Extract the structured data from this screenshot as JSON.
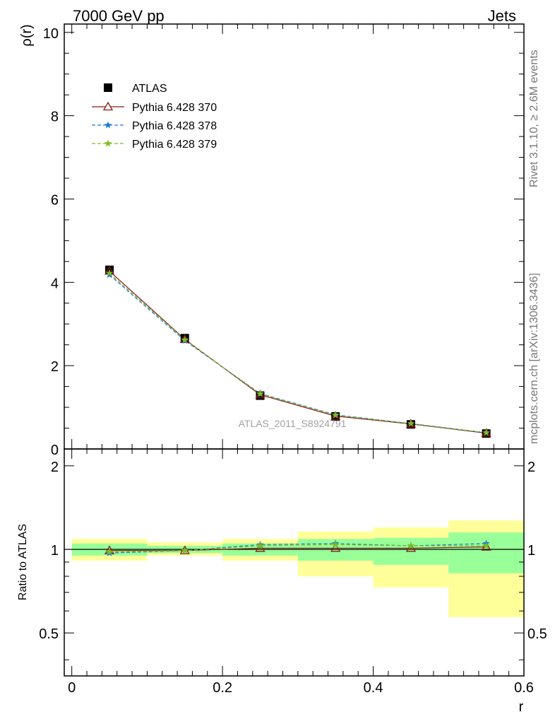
{
  "header": {
    "left": "7000 GeV pp",
    "right": "Jets"
  },
  "side": {
    "rivet": "Rivet 3.1.10, ≥ 2.6M events",
    "mcplots": "mcplots.cern.ch [arXiv:1306.3436]"
  },
  "watermark": "ATLAS_2011_S8924791",
  "colors": {
    "atlas": "#000000",
    "p370": "#8b1a1a",
    "p378": "#1f77d4",
    "p379": "#7dbd1e",
    "band_outer": "#ffff99",
    "band_inner": "#99ff99"
  },
  "chart_data": [
    {
      "type": "line",
      "ylabel": "ρ(r)",
      "xlim": [
        -0.01,
        0.6
      ],
      "ylim": [
        0,
        10.2
      ],
      "yticks": [
        0,
        2,
        4,
        6,
        8,
        10
      ],
      "ytick_labels": [
        "0",
        "2",
        "4",
        "6",
        "8",
        "10"
      ],
      "x": [
        0.05,
        0.15,
        0.25,
        0.35,
        0.45,
        0.55
      ],
      "legend": {
        "position": "top-left",
        "entries": [
          "ATLAS",
          "Pythia 6.428 370",
          "Pythia 6.428 378",
          "Pythia 6.428 379"
        ]
      },
      "series": [
        {
          "name": "ATLAS",
          "marker": "square",
          "values": [
            4.3,
            2.66,
            1.28,
            0.78,
            0.59,
            0.37
          ]
        },
        {
          "name": "Pythia 6.428 370",
          "marker": "triangle",
          "line": "solid",
          "values": [
            4.27,
            2.63,
            1.3,
            0.79,
            0.6,
            0.38
          ]
        },
        {
          "name": "Pythia 6.428 378",
          "marker": "star",
          "line": "dashed",
          "values": [
            4.18,
            2.6,
            1.33,
            0.82,
            0.61,
            0.39
          ]
        },
        {
          "name": "Pythia 6.428 379",
          "marker": "star",
          "line": "dashed",
          "values": [
            4.22,
            2.62,
            1.32,
            0.81,
            0.61,
            0.39
          ]
        }
      ]
    },
    {
      "type": "line",
      "ylabel": "Ratio to ATLAS",
      "xlabel": "r",
      "xlim": [
        -0.01,
        0.6
      ],
      "ylim": [
        0.35,
        2.3
      ],
      "xticks": [
        0,
        0.2,
        0.4,
        0.6
      ],
      "xtick_labels": [
        "0",
        "0.2",
        "0.4",
        "0.6"
      ],
      "yticks": [
        0.5,
        1,
        2
      ],
      "ytick_labels": [
        "0.5",
        "1",
        "2"
      ],
      "bins": [
        [
          0,
          0.1
        ],
        [
          0.1,
          0.2
        ],
        [
          0.2,
          0.3
        ],
        [
          0.3,
          0.4
        ],
        [
          0.4,
          0.5
        ],
        [
          0.5,
          0.6
        ]
      ],
      "band_outer": [
        [
          0.91,
          1.09
        ],
        [
          0.95,
          1.06
        ],
        [
          0.91,
          1.09
        ],
        [
          0.8,
          1.16
        ],
        [
          0.73,
          1.2
        ],
        [
          0.57,
          1.27
        ]
      ],
      "band_inner": [
        [
          0.95,
          1.05
        ],
        [
          0.97,
          1.03
        ],
        [
          0.95,
          1.05
        ],
        [
          0.91,
          1.09
        ],
        [
          0.88,
          1.1
        ],
        [
          0.82,
          1.15
        ]
      ],
      "x": [
        0.05,
        0.15,
        0.25,
        0.35,
        0.45,
        0.55
      ],
      "series": [
        {
          "name": "Pythia 6.428 370",
          "values": [
            0.99,
            0.99,
            1.01,
            1.01,
            1.01,
            1.02
          ]
        },
        {
          "name": "Pythia 6.428 378",
          "values": [
            0.97,
            0.99,
            1.04,
            1.05,
            1.03,
            1.05
          ]
        },
        {
          "name": "Pythia 6.428 379",
          "values": [
            0.98,
            0.99,
            1.03,
            1.04,
            1.03,
            1.03
          ]
        }
      ]
    }
  ]
}
